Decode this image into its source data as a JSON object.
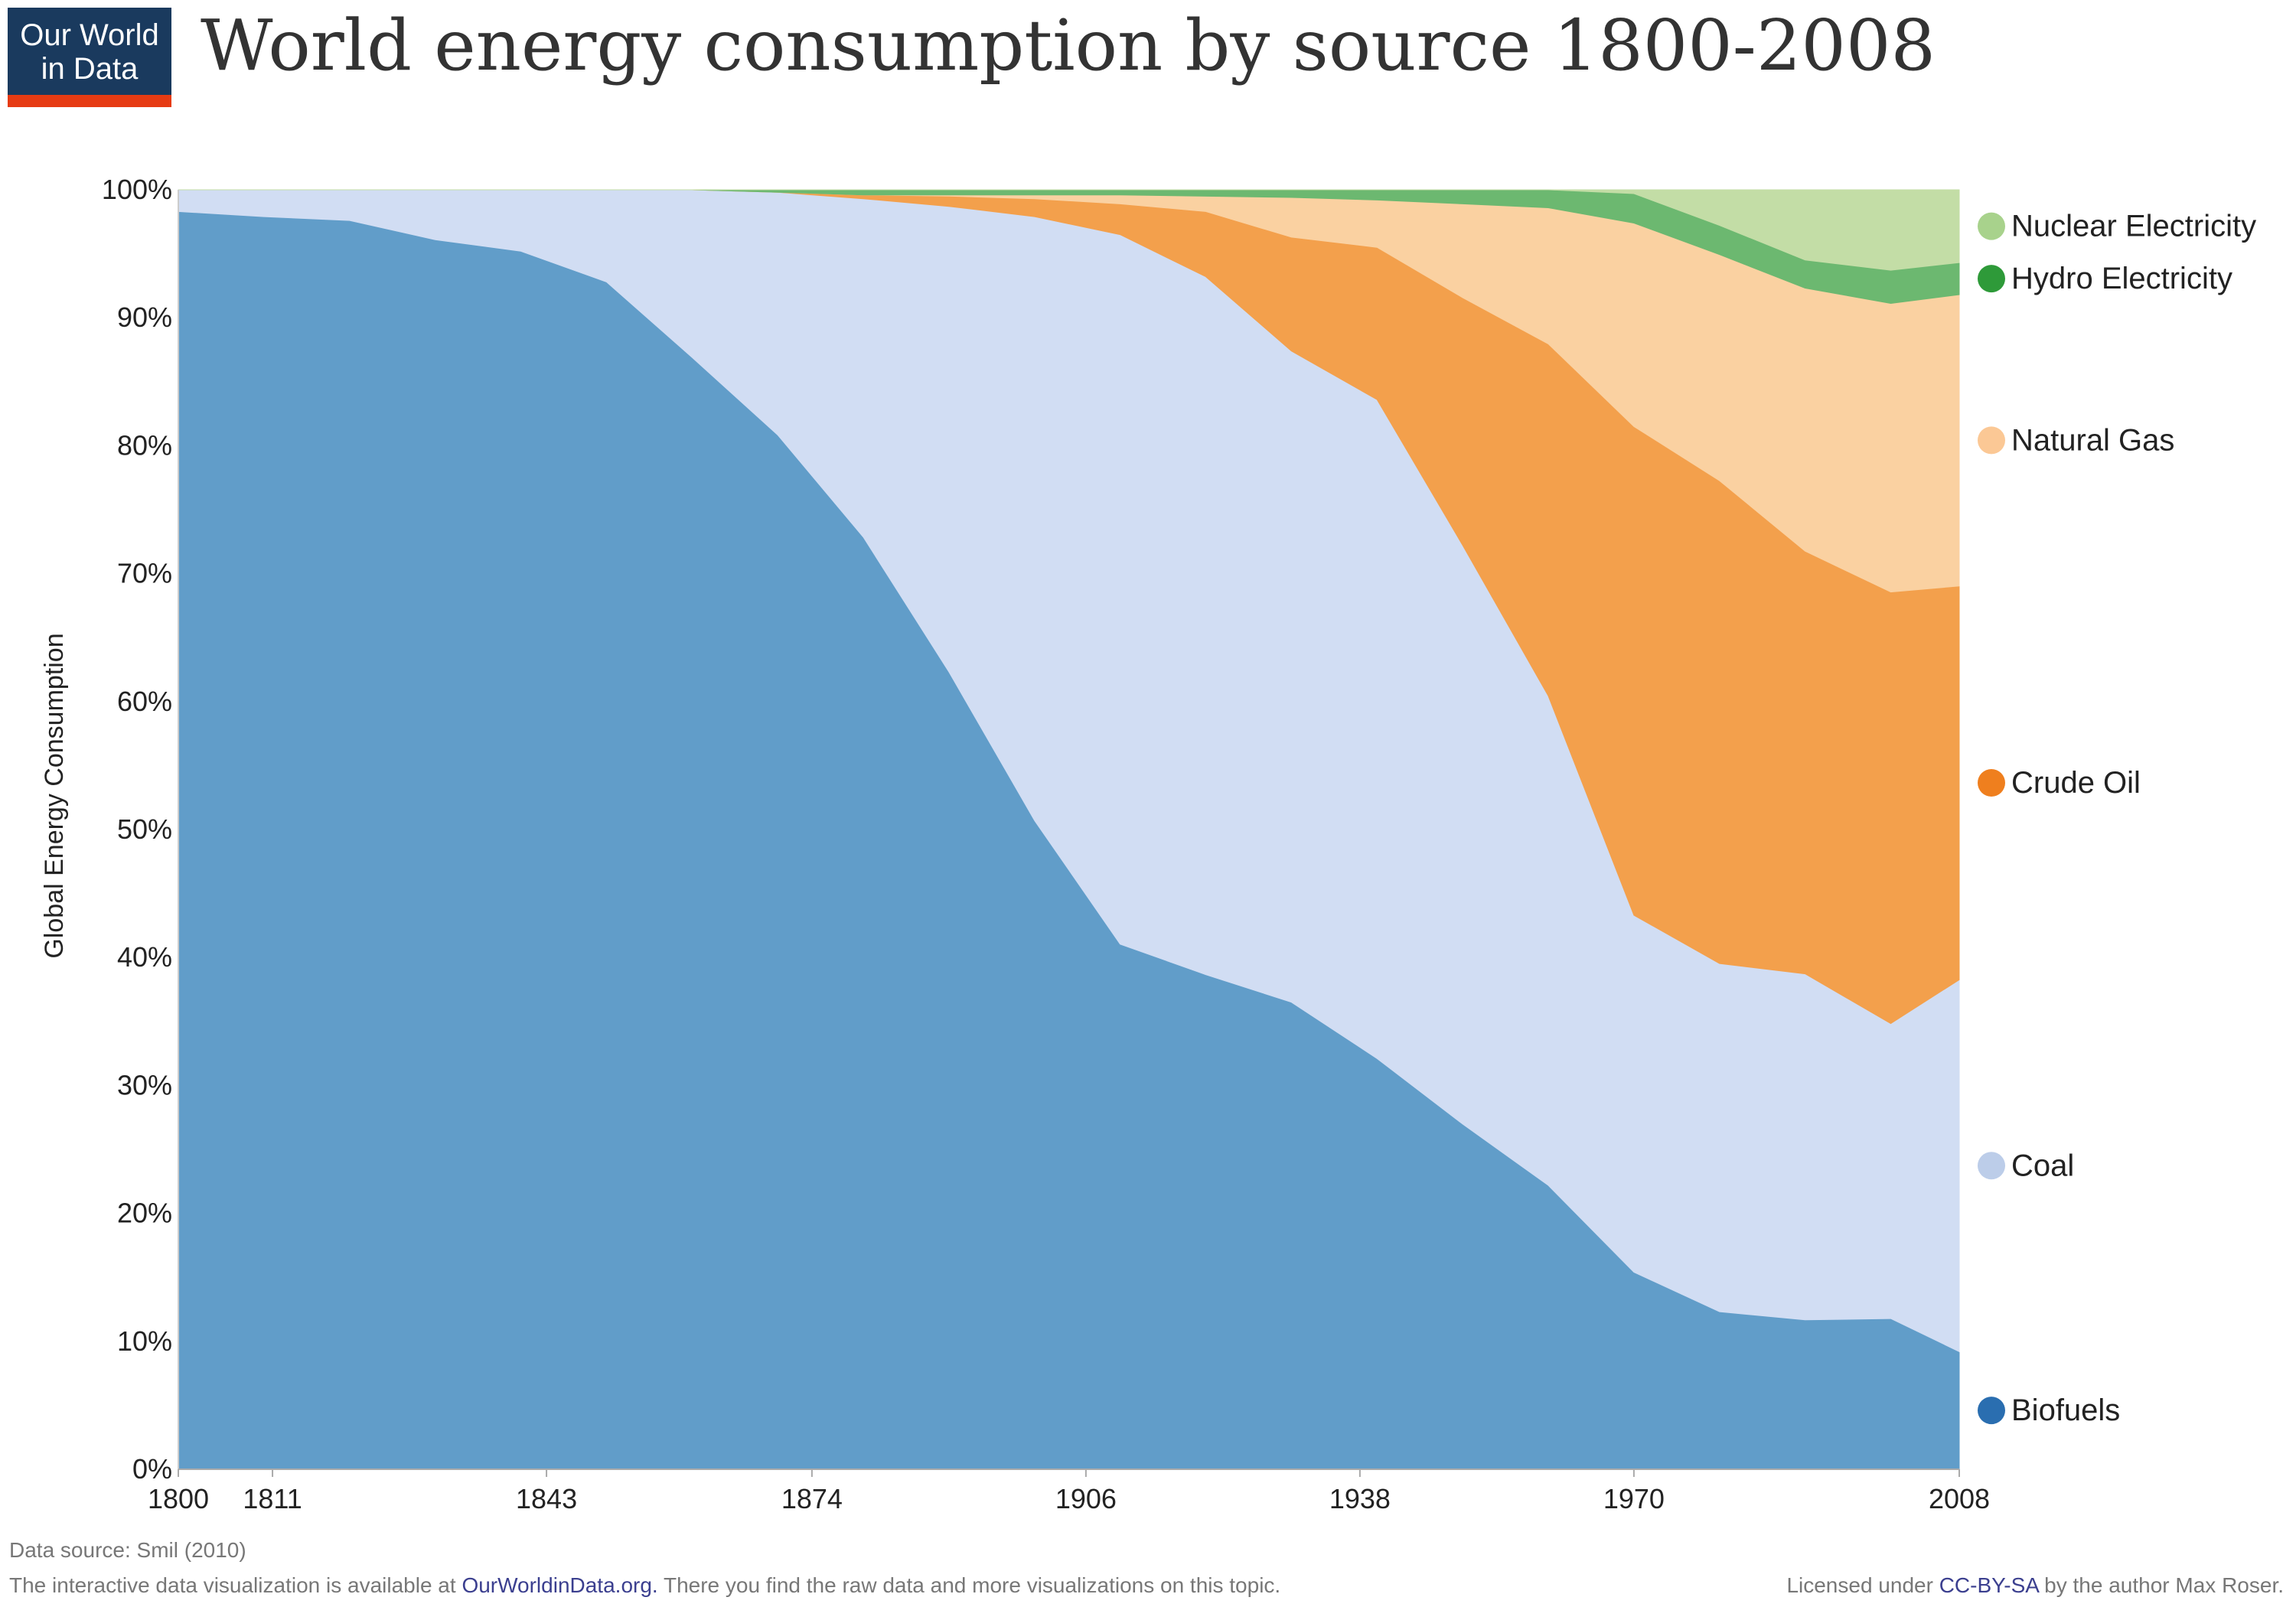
{
  "logo": {
    "line1": "Our World",
    "line2": "in Data"
  },
  "title": "World energy consumption by source 1800-2008",
  "footer": {
    "source": "Data source: Smil (2010)",
    "viz_prefix": "The interactive data visualization is available at ",
    "viz_link": "OurWorldinData.org.",
    "viz_suffix": " There you find the raw data and more visualizations on this topic.",
    "license_prefix": "Licensed under ",
    "license_link": "CC-BY-SA",
    "license_suffix": " by the author Max Roser."
  },
  "chart_data": {
    "type": "area",
    "stacked": true,
    "percent": true,
    "title": "World energy consumption by source 1800-2008",
    "ylabel": "Global Energy Consumption",
    "xlabel": "",
    "xlim": [
      1800,
      2008
    ],
    "ylim": [
      0,
      100
    ],
    "x_ticks": [
      1800,
      1811,
      1843,
      1874,
      1906,
      1938,
      1970,
      2008
    ],
    "y_ticks": [
      0,
      10,
      20,
      30,
      40,
      50,
      60,
      70,
      80,
      90,
      100
    ],
    "x": [
      1800,
      1810,
      1820,
      1830,
      1840,
      1850,
      1860,
      1870,
      1880,
      1890,
      1900,
      1910,
      1920,
      1930,
      1940,
      1950,
      1960,
      1970,
      1980,
      1990,
      2000,
      2008
    ],
    "series": [
      {
        "name": "Biofuels",
        "color": "#619dc9",
        "legend_color": "#2a6eb0",
        "values": [
          98.3,
          97.9,
          97.6,
          96.1,
          95.2,
          92.8,
          86.9,
          81.0,
          73.0,
          62.5,
          50.7,
          41.0,
          38.7,
          36.5,
          32.1,
          26.9,
          22.1,
          15.4,
          12.4,
          11.7,
          11.8,
          9.2
        ]
      },
      {
        "name": "Coal",
        "color": "#d1ddf3",
        "legend_color": "#bccde9",
        "values": [
          1.7,
          2.1,
          2.4,
          3.9,
          4.8,
          7.2,
          13.1,
          19.0,
          26.5,
          36.5,
          47.2,
          55.4,
          54.6,
          50.9,
          51.5,
          45.1,
          38.1,
          27.9,
          27.4,
          27.1,
          23.1,
          29.1
        ]
      },
      {
        "name": "Crude Oil",
        "color": "#f3a04c",
        "legend_color": "#ef7f1e",
        "values": [
          0,
          0,
          0,
          0,
          0,
          0,
          0,
          0,
          0.3,
          0.8,
          1.4,
          2.4,
          5.1,
          8.9,
          11.9,
          19.3,
          27.4,
          38.2,
          38.0,
          33.1,
          33.8,
          30.8
        ]
      },
      {
        "name": "Natural Gas",
        "color": "#fad1a1",
        "legend_color": "#fbc895",
        "values": [
          0,
          0,
          0,
          0,
          0,
          0,
          0,
          0,
          0,
          0.1,
          0.3,
          0.7,
          1.2,
          3.1,
          3.7,
          7.3,
          10.6,
          15.9,
          17.8,
          20.6,
          22.6,
          22.8
        ]
      },
      {
        "name": "Hydro Electricity",
        "color": "#6cb870",
        "legend_color": "#2e9a39",
        "values": [
          0,
          0,
          0,
          0,
          0,
          0,
          0,
          0.2,
          0.4,
          0.4,
          0.4,
          0.4,
          0.5,
          0.6,
          0.8,
          1.1,
          1.4,
          2.3,
          2.3,
          2.2,
          2.6,
          2.5
        ]
      },
      {
        "name": "Nuclear Electricity",
        "color": "#c3dda6",
        "legend_color": "#a8d28c",
        "values": [
          0,
          0,
          0,
          0,
          0,
          0,
          0,
          0,
          0,
          0,
          0,
          0,
          0,
          0,
          0,
          0,
          0,
          0.3,
          2.8,
          5.5,
          6.3,
          5.7
        ]
      }
    ],
    "legend_position": "right"
  }
}
